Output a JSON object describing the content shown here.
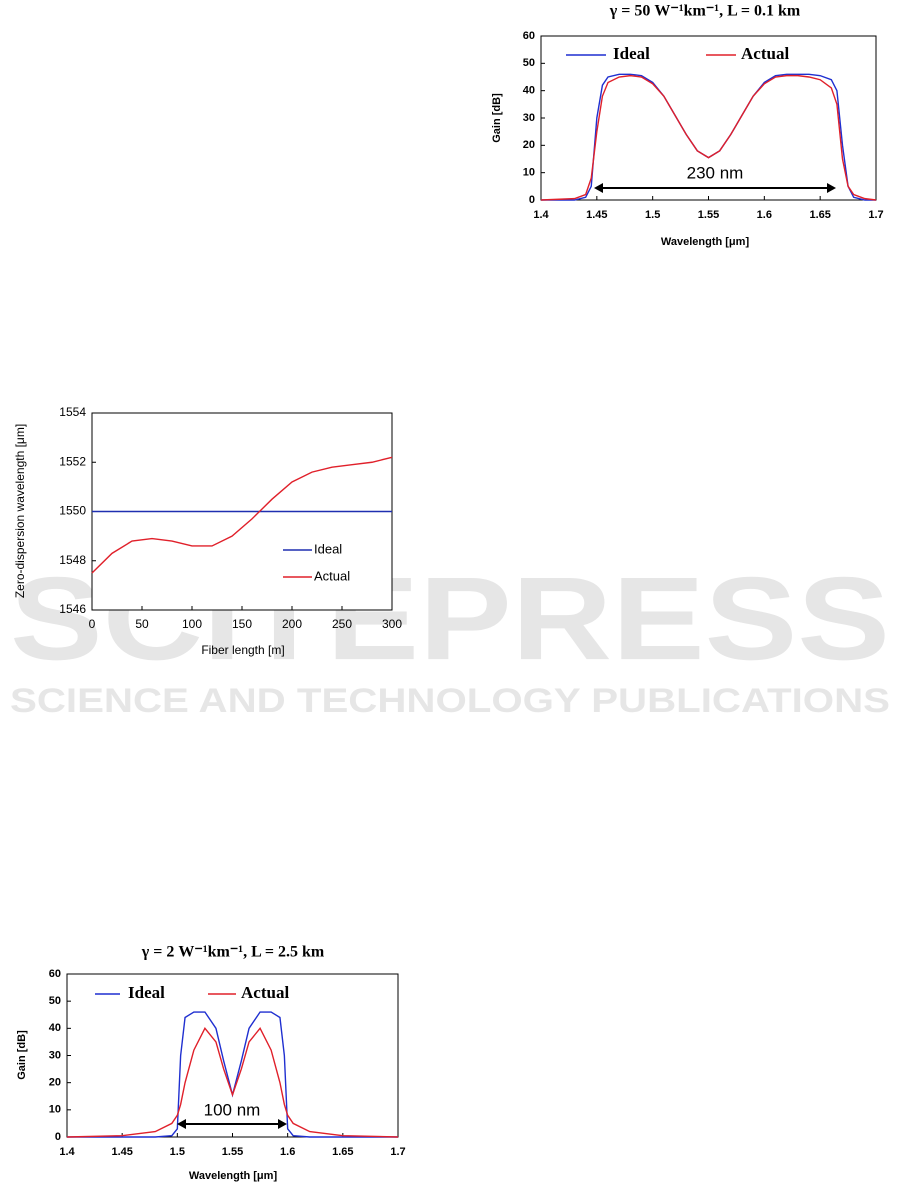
{
  "watermark": {
    "brand": "SCITEPRESS",
    "tagline": "SCIENCE AND TECHNOLOGY PUBLICATIONS"
  },
  "chart_data": [
    {
      "type": "line",
      "title": "γ = 50 W⁻¹km⁻¹,  L = 0.1 km",
      "x_label": "Wavelength [μm]",
      "y_label": "Gain [dB]",
      "annotation": "230 nm",
      "x": [
        1.4,
        1.43,
        1.44,
        1.445,
        1.45,
        1.455,
        1.46,
        1.47,
        1.48,
        1.49,
        1.5,
        1.51,
        1.52,
        1.53,
        1.54,
        1.55,
        1.56,
        1.57,
        1.58,
        1.59,
        1.6,
        1.61,
        1.62,
        1.63,
        1.64,
        1.65,
        1.66,
        1.665,
        1.67,
        1.675,
        1.68,
        1.69,
        1.7
      ],
      "series": [
        {
          "name": "Ideal",
          "color": "#1f2fd0",
          "values": [
            0,
            0,
            1,
            5,
            30,
            42,
            45,
            46,
            46,
            45.5,
            43,
            38,
            31,
            24,
            18,
            15.5,
            18,
            24,
            31,
            38,
            43,
            45.5,
            46,
            46,
            46,
            45.5,
            44,
            40,
            20,
            5,
            1,
            0,
            0
          ]
        },
        {
          "name": "Actual",
          "color": "#e0202a",
          "values": [
            0,
            0.5,
            2,
            8,
            25,
            38,
            43,
            45,
            45.5,
            45,
            42.5,
            38,
            31,
            24,
            18,
            15.5,
            18,
            24,
            31,
            38,
            42.5,
            45,
            45.5,
            45.5,
            45,
            44,
            41,
            35,
            15,
            5,
            2,
            0.5,
            0
          ]
        }
      ],
      "xlim": [
        1.4,
        1.7
      ],
      "xticks": [
        1.4,
        1.45,
        1.5,
        1.55,
        1.6,
        1.65,
        1.7
      ],
      "ylim": [
        0,
        60
      ],
      "yticks": [
        0,
        10,
        20,
        30,
        40,
        50,
        60
      ]
    },
    {
      "type": "line",
      "x_label": "Fiber length [m]",
      "y_label": "Zero-dispersion wavelength [μm]",
      "x": [
        0,
        20,
        40,
        60,
        80,
        100,
        120,
        140,
        160,
        180,
        200,
        220,
        240,
        260,
        280,
        300
      ],
      "series": [
        {
          "name": "Ideal",
          "color": "#1f2fb0",
          "values": [
            1550,
            1550,
            1550,
            1550,
            1550,
            1550,
            1550,
            1550,
            1550,
            1550,
            1550,
            1550,
            1550,
            1550,
            1550,
            1550
          ]
        },
        {
          "name": "Actual",
          "color": "#e0202a",
          "values": [
            1547.5,
            1548.3,
            1548.8,
            1548.9,
            1548.8,
            1548.6,
            1548.6,
            1549.0,
            1549.7,
            1550.5,
            1551.2,
            1551.6,
            1551.8,
            1551.9,
            1552.0,
            1552.2
          ]
        }
      ],
      "xlim": [
        0,
        300
      ],
      "xticks": [
        0,
        50,
        100,
        150,
        200,
        250,
        300
      ],
      "ylim": [
        1546,
        1554
      ],
      "yticks": [
        1546,
        1548,
        1550,
        1552,
        1554
      ]
    },
    {
      "type": "line",
      "title": "γ = 2 W⁻¹km⁻¹,  L = 2.5 km",
      "x_label": "Wavelength [μm]",
      "y_label": "Gain [dB]",
      "annotation": "100 nm",
      "x": [
        1.4,
        1.45,
        1.48,
        1.495,
        1.5,
        1.503,
        1.507,
        1.515,
        1.525,
        1.535,
        1.542,
        1.55,
        1.558,
        1.565,
        1.575,
        1.585,
        1.593,
        1.597,
        1.6,
        1.605,
        1.62,
        1.65,
        1.7
      ],
      "series": [
        {
          "name": "Ideal",
          "color": "#1f2fd0",
          "values": [
            0,
            0,
            0,
            0.5,
            3,
            30,
            44,
            46,
            46,
            40,
            28,
            15.5,
            28,
            40,
            46,
            46,
            44,
            30,
            3,
            0.5,
            0,
            0,
            0
          ]
        },
        {
          "name": "Actual",
          "color": "#e0202a",
          "values": [
            0,
            0.5,
            2,
            5,
            8,
            12,
            20,
            32,
            40,
            35,
            25,
            15.5,
            25,
            35,
            40,
            32,
            20,
            12,
            8,
            5,
            2,
            0.5,
            0
          ]
        }
      ],
      "xlim": [
        1.4,
        1.7
      ],
      "xticks": [
        1.4,
        1.45,
        1.5,
        1.55,
        1.6,
        1.65,
        1.7
      ],
      "ylim": [
        0,
        60
      ],
      "yticks": [
        0,
        10,
        20,
        30,
        40,
        50,
        60
      ]
    }
  ]
}
